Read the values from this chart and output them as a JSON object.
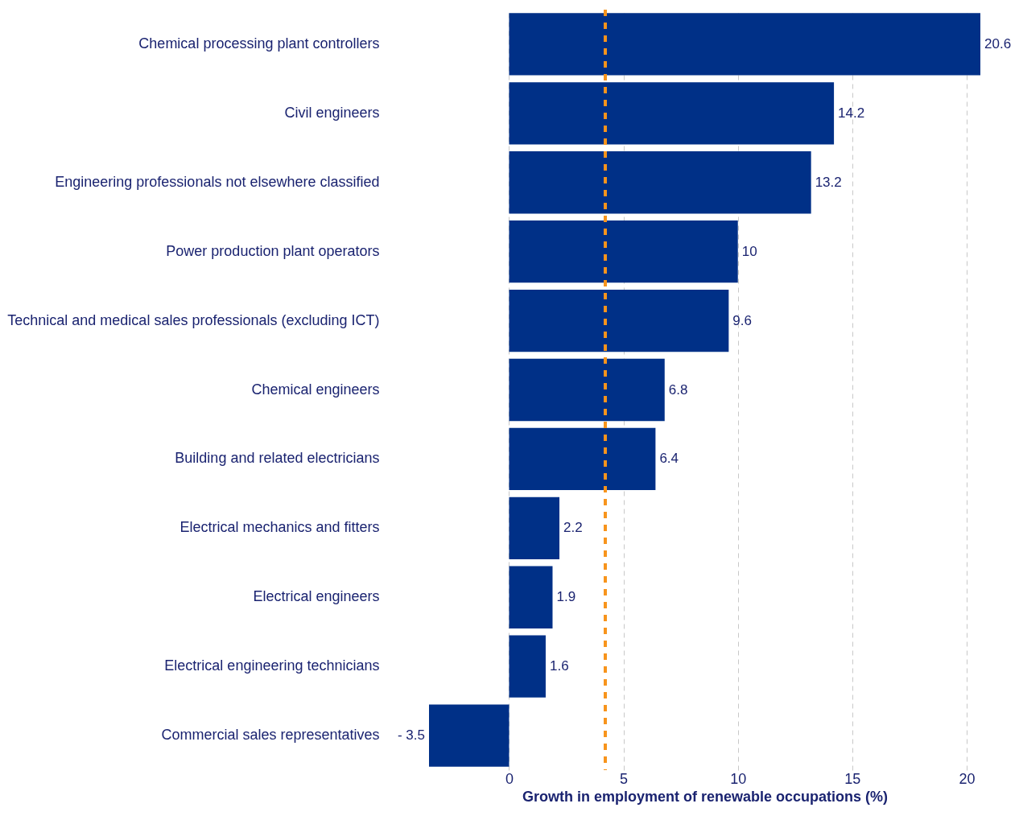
{
  "chart_data": {
    "type": "bar",
    "orientation": "horizontal",
    "xlabel": "Growth in employment of renewable occupations (%)",
    "categories": [
      "Chemical processing plant controllers",
      "Civil engineers",
      "Engineering professionals not elsewhere classified",
      "Power production plant operators",
      "Technical and medical sales professionals (excluding ICT)",
      "Chemical engineers",
      "Building and related electricians",
      "Electrical mechanics and fitters",
      "Electrical engineers",
      "Electrical engineering technicians",
      "Commercial sales representatives"
    ],
    "values": [
      20.6,
      14.2,
      13.2,
      10,
      9.6,
      6.8,
      6.4,
      2.2,
      1.9,
      1.6,
      -3.5
    ],
    "value_labels": [
      "20.6",
      "14.2",
      "13.2",
      "10",
      "9.6",
      "6.8",
      "6.4",
      "2.2",
      "1.9",
      "1.6",
      "- 3.5"
    ],
    "color": "#003087",
    "xlim": [
      -3.5,
      20.6
    ],
    "xticks": [
      0,
      5,
      10,
      15,
      20
    ],
    "grid": "x",
    "ref_lines": [
      {
        "axis": "x",
        "value": 4.2,
        "color": "#f7941d",
        "line_style": "dashed"
      }
    ]
  }
}
